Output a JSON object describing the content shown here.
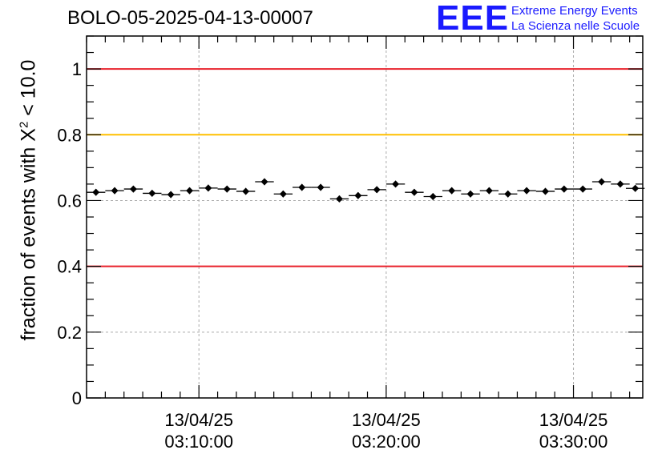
{
  "header": {
    "run_title": "BOLO-05-2025-04-13-00007"
  },
  "logo": {
    "mark": "EEE",
    "line1": "Extreme Energy Events",
    "line2": "La Scienza nelle Scuole",
    "color": "#1a1aff"
  },
  "chart_data": {
    "type": "scatter",
    "ylabel_prefix": "fraction of events with ",
    "ylabel_symbol": "X",
    "ylabel_exp": "2",
    "ylabel_suffix": " < 10.0",
    "ylim": [
      0,
      1.1
    ],
    "y_ticks": [
      0,
      0.2,
      0.4,
      0.6,
      0.8,
      1
    ],
    "y_tick_labels": [
      "0",
      "0.2",
      "0.4",
      "0.6",
      "0.8",
      "1"
    ],
    "x_start_min": 0,
    "x_end_min": 29.7,
    "x_ticks": [
      {
        "minute": 6,
        "date": "13/04/25",
        "time": "03:10:00"
      },
      {
        "minute": 16,
        "date": "13/04/25",
        "time": "03:20:00"
      },
      {
        "minute": 26,
        "date": "13/04/25",
        "time": "03:30:00"
      }
    ],
    "grid": true,
    "reference_lines": [
      {
        "y": 1.0,
        "color": "#e8202a"
      },
      {
        "y": 0.8,
        "color": "#ffc000"
      },
      {
        "y": 0.4,
        "color": "#e8202a"
      }
    ],
    "points": [
      {
        "x": 0.5,
        "y": 0.625,
        "err": 0.01
      },
      {
        "x": 1.5,
        "y": 0.63,
        "err": 0.01
      },
      {
        "x": 2.5,
        "y": 0.635,
        "err": 0.01
      },
      {
        "x": 3.5,
        "y": 0.622,
        "err": 0.01
      },
      {
        "x": 4.5,
        "y": 0.618,
        "err": 0.01
      },
      {
        "x": 5.5,
        "y": 0.63,
        "err": 0.01
      },
      {
        "x": 6.5,
        "y": 0.638,
        "err": 0.01
      },
      {
        "x": 7.5,
        "y": 0.635,
        "err": 0.01
      },
      {
        "x": 8.5,
        "y": 0.628,
        "err": 0.01
      },
      {
        "x": 9.5,
        "y": 0.657,
        "err": 0.01
      },
      {
        "x": 10.5,
        "y": 0.62,
        "err": 0.01
      },
      {
        "x": 11.5,
        "y": 0.64,
        "err": 0.01
      },
      {
        "x": 12.5,
        "y": 0.64,
        "err": 0.01
      },
      {
        "x": 13.5,
        "y": 0.605,
        "err": 0.01
      },
      {
        "x": 14.5,
        "y": 0.615,
        "err": 0.01
      },
      {
        "x": 15.5,
        "y": 0.633,
        "err": 0.01
      },
      {
        "x": 16.5,
        "y": 0.65,
        "err": 0.01
      },
      {
        "x": 17.5,
        "y": 0.625,
        "err": 0.01
      },
      {
        "x": 18.5,
        "y": 0.612,
        "err": 0.01
      },
      {
        "x": 19.5,
        "y": 0.63,
        "err": 0.01
      },
      {
        "x": 20.5,
        "y": 0.62,
        "err": 0.01
      },
      {
        "x": 21.5,
        "y": 0.63,
        "err": 0.01
      },
      {
        "x": 22.5,
        "y": 0.62,
        "err": 0.01
      },
      {
        "x": 23.5,
        "y": 0.63,
        "err": 0.01
      },
      {
        "x": 24.5,
        "y": 0.628,
        "err": 0.01
      },
      {
        "x": 25.5,
        "y": 0.635,
        "err": 0.01
      },
      {
        "x": 26.5,
        "y": 0.635,
        "err": 0.01
      },
      {
        "x": 27.5,
        "y": 0.657,
        "err": 0.01
      },
      {
        "x": 28.5,
        "y": 0.65,
        "err": 0.01
      },
      {
        "x": 29.3,
        "y": 0.637,
        "err": 0.01
      }
    ]
  }
}
